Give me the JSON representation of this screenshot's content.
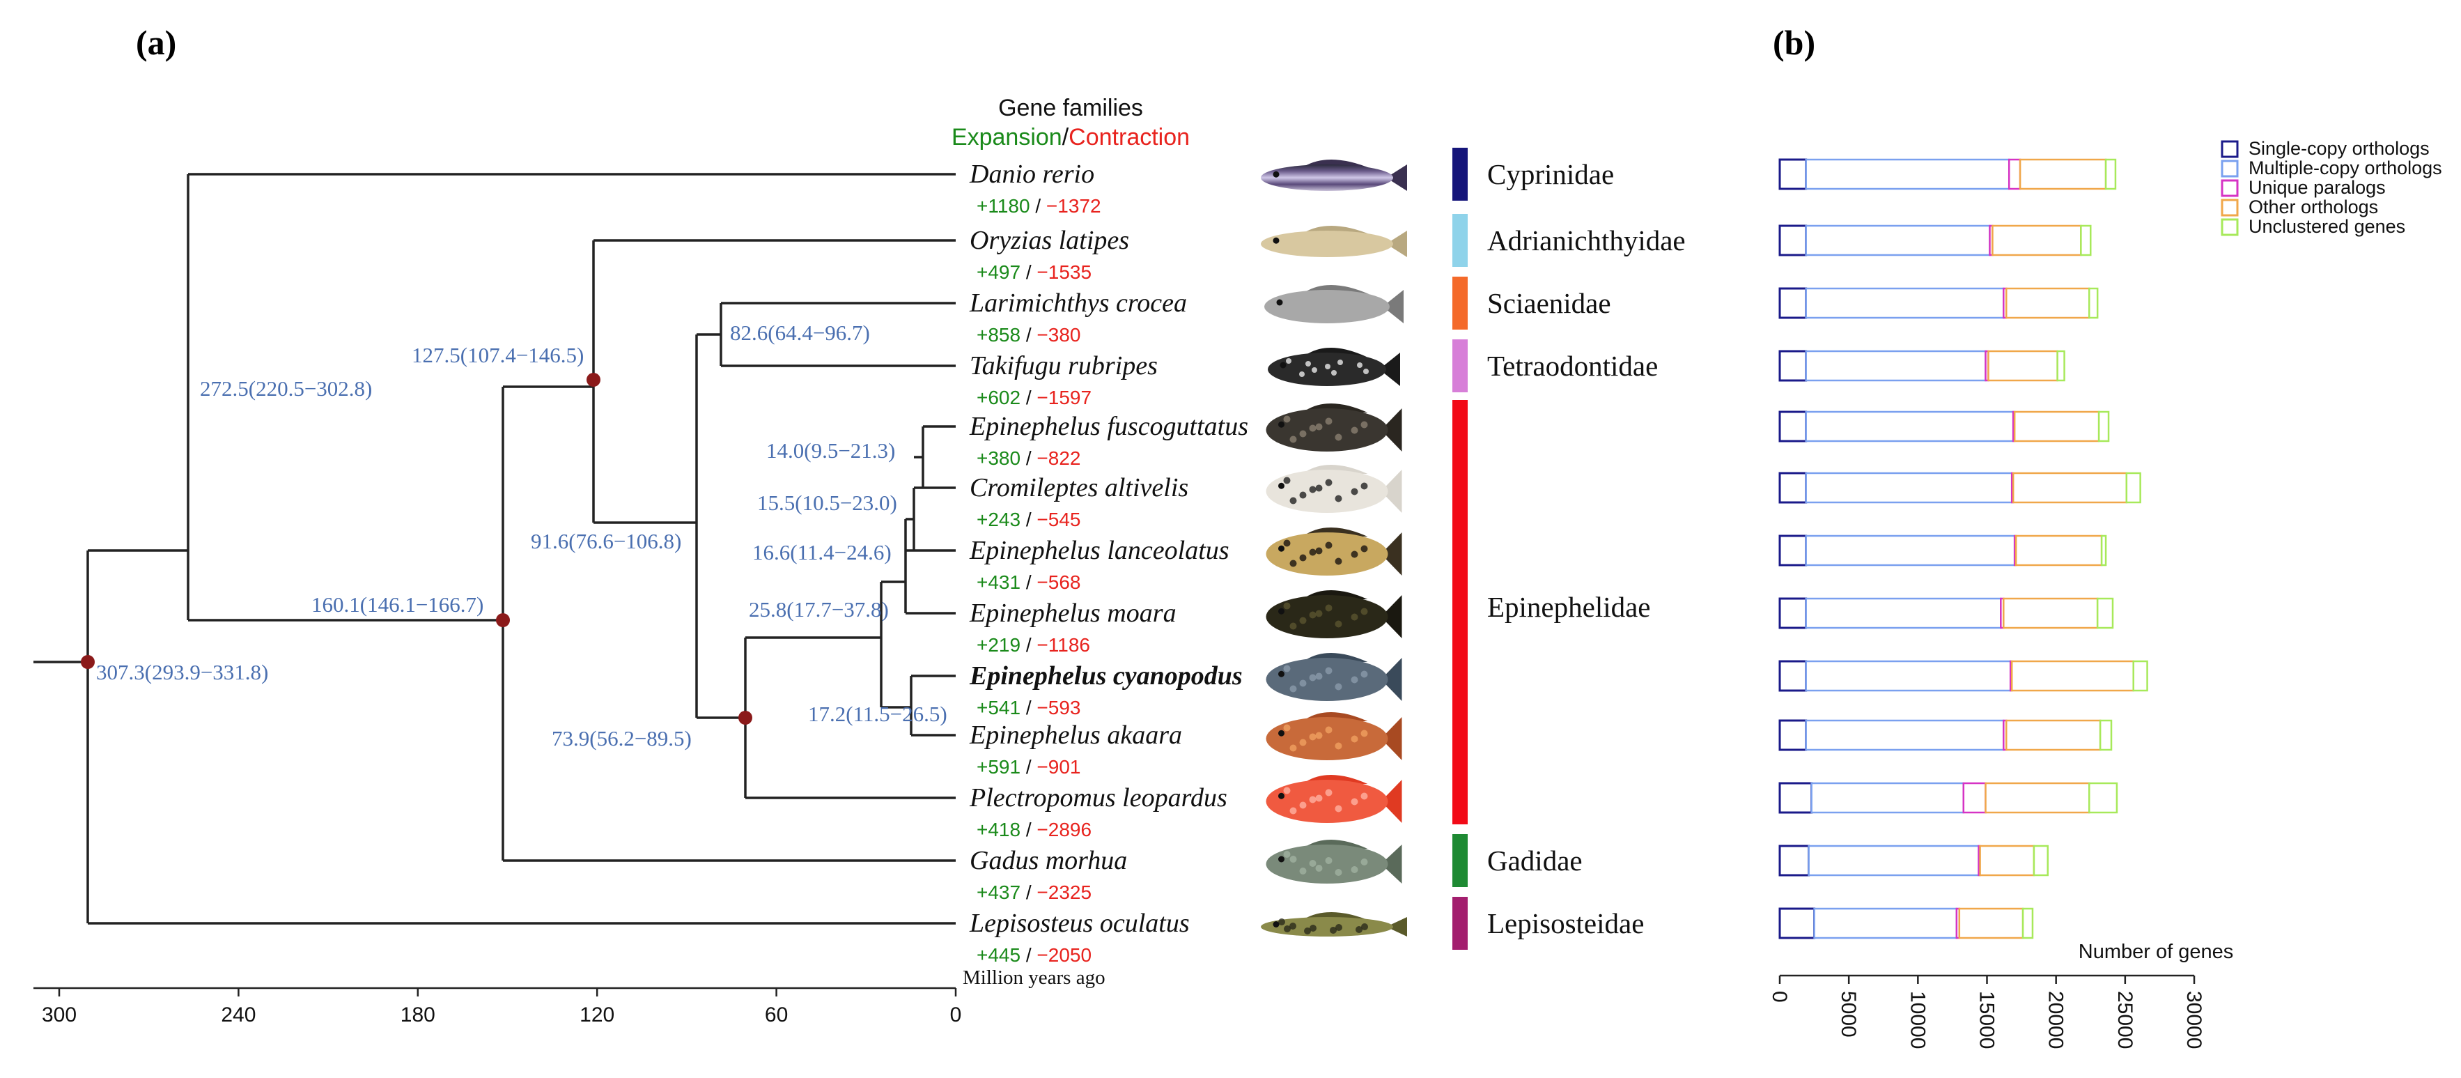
{
  "panel_a": {
    "label": "(a)",
    "legend": {
      "title": "Gene families",
      "expansion": "Expansion",
      "separator": "/",
      "contraction": "Contraction"
    },
    "taxa": [
      {
        "name": "Danio rerio",
        "exp": "+1180",
        "con": "−1372",
        "bold": false
      },
      {
        "name": "Oryzias latipes",
        "exp": "+497",
        "con": "−1535",
        "bold": false
      },
      {
        "name": "Larimichthys crocea",
        "exp": "+858",
        "con": "−380",
        "bold": false
      },
      {
        "name": "Takifugu rubripes",
        "exp": "+602",
        "con": "−1597",
        "bold": false
      },
      {
        "name": "Epinephelus fuscoguttatus",
        "exp": "+380",
        "con": "−822",
        "bold": false
      },
      {
        "name": "Cromileptes altivelis",
        "exp": "+243",
        "con": "−545",
        "bold": false
      },
      {
        "name": "Epinephelus lanceolatus",
        "exp": "+431",
        "con": "−568",
        "bold": false
      },
      {
        "name": "Epinephelus moara",
        "exp": "+219",
        "con": "−1186",
        "bold": false
      },
      {
        "name": "Epinephelus cyanopodus",
        "exp": "+541",
        "con": "−593",
        "bold": true
      },
      {
        "name": "Epinephelus akaara",
        "exp": "+591",
        "con": "−901",
        "bold": false
      },
      {
        "name": "Plectropomus leopardus",
        "exp": "+418",
        "con": "−2896",
        "bold": false
      },
      {
        "name": "Gadus morhua",
        "exp": "+437",
        "con": "−2325",
        "bold": false
      },
      {
        "name": "Lepisosteus oculatus",
        "exp": "+445",
        "con": "−2050",
        "bold": false
      }
    ],
    "node_labels": [
      "307.3(293.9−331.8)",
      "272.5(220.5−302.8)",
      "160.1(146.1−166.7)",
      "127.5(107.4−146.5)",
      "91.6(76.6−106.8)",
      "82.6(64.4−96.7)",
      "73.9(56.2−89.5)",
      "25.8(17.7−37.8)",
      "16.6(11.4−24.6)",
      "15.5(10.5−23.0)",
      "14.0(9.5−21.3)",
      "17.2(11.5−26.5)"
    ],
    "families": [
      {
        "name": "Cyprinidae",
        "color": "#15157a"
      },
      {
        "name": "Adrianichthyidae",
        "color": "#8fd3ea"
      },
      {
        "name": "Sciaenidae",
        "color": "#f46a2a"
      },
      {
        "name": "Tetraodontidae",
        "color": "#d77fd8"
      },
      {
        "name": "Epinephelidae",
        "color": "#f20a17"
      },
      {
        "name": "Gadidae",
        "color": "#1e8a33"
      },
      {
        "name": "Lepisosteidae",
        "color": "#a31e6e"
      }
    ],
    "axis": {
      "ticks": [
        "300",
        "240",
        "180",
        "120",
        "60",
        "0"
      ],
      "label": "Million years ago"
    },
    "colors": {
      "expansion": "#1a8a1a",
      "contraction": "#e8231e",
      "node_label": "#4a6fb0",
      "node_dot": "#8b1a1a"
    }
  },
  "panel_b": {
    "label": "(b)",
    "legend": [
      {
        "name": "Single-copy orthologs",
        "color": "#1a1a8a"
      },
      {
        "name": "Multiple-copy orthologs",
        "color": "#7aa0ef"
      },
      {
        "name": "Unique paralogs",
        "color": "#d633c4"
      },
      {
        "name": "Other orthologs",
        "color": "#f0a74a"
      },
      {
        "name": "Unclustered genes",
        "color": "#a7e95a"
      }
    ],
    "axis_label": "Number of genes",
    "ticks": [
      "0",
      "5000",
      "10000",
      "15000",
      "20000",
      "25000",
      "30000"
    ]
  },
  "chart_data": {
    "type": "bar",
    "orientation": "horizontal",
    "stacked": true,
    "title": "",
    "xlabel": "Number of genes",
    "xlim": [
      0,
      30000
    ],
    "categories": [
      "Danio rerio",
      "Oryzias latipes",
      "Larimichthys crocea",
      "Takifugu rubripes",
      "Epinephelus fuscoguttatus",
      "Cromileptes altivelis",
      "Epinephelus lanceolatus",
      "Epinephelus moara",
      "Epinephelus cyanopodus",
      "Epinephelus akaara",
      "Plectropomus leopardus",
      "Gadus morhua",
      "Lepisosteus oculatus"
    ],
    "series": [
      {
        "name": "Single-copy orthologs",
        "values": [
          1900,
          1900,
          1900,
          1900,
          1900,
          1900,
          1900,
          1900,
          1900,
          1900,
          2300,
          2100,
          2500
        ]
      },
      {
        "name": "Multiple-copy orthologs",
        "values": [
          14700,
          13300,
          14300,
          13000,
          15000,
          14900,
          15100,
          14100,
          14800,
          14300,
          11000,
          12300,
          10300
        ]
      },
      {
        "name": "Unique paralogs",
        "values": [
          800,
          200,
          200,
          200,
          100,
          100,
          100,
          200,
          100,
          200,
          1600,
          100,
          200
        ]
      },
      {
        "name": "Other orthologs",
        "values": [
          6200,
          6400,
          6000,
          5000,
          6100,
          8200,
          6200,
          6800,
          8800,
          6800,
          7500,
          3900,
          4600
        ]
      },
      {
        "name": "Unclustered genes",
        "values": [
          700,
          700,
          600,
          500,
          700,
          1000,
          300,
          1100,
          1000,
          800,
          2000,
          1000,
          700
        ]
      }
    ]
  }
}
